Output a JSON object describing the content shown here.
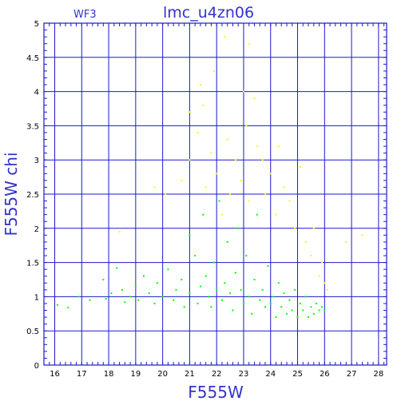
{
  "chart_data": {
    "type": "scatter",
    "title": "lmc_u4zn06",
    "subtitle": "WF3",
    "xlabel": "F555W",
    "ylabel": "F555W  chi",
    "xlim": [
      15.6,
      28.3
    ],
    "ylim": [
      0,
      5
    ],
    "xticks": [
      16,
      17,
      18,
      19,
      20,
      21,
      22,
      23,
      24,
      25,
      26,
      27,
      28
    ],
    "yticks": [
      0,
      0.5,
      1,
      1.5,
      2,
      2.5,
      3,
      3.5,
      4,
      4.5,
      5
    ],
    "xtick_labels": [
      "16",
      "17",
      "18",
      "19",
      "20",
      "21",
      "22",
      "23",
      "24",
      "25",
      "26",
      "27",
      "28"
    ],
    "ytick_labels": [
      "0",
      "0.5",
      "1",
      "1.5",
      "2",
      "2.5",
      "3",
      "3.5",
      "4",
      "4.5",
      "5"
    ],
    "grid": true,
    "series": [
      {
        "color": "#00ff00",
        "points": [
          [
            16.1,
            0.88
          ],
          [
            16.5,
            0.84
          ],
          [
            16.9,
            1.0
          ],
          [
            17.3,
            0.95
          ],
          [
            17.8,
            1.25
          ],
          [
            17.9,
            0.97
          ],
          [
            18.1,
            1.05
          ],
          [
            18.3,
            1.42
          ],
          [
            18.5,
            1.1
          ],
          [
            18.6,
            0.92
          ],
          [
            18.8,
            1.0
          ],
          [
            19.0,
            1.15
          ],
          [
            19.1,
            0.95
          ],
          [
            19.3,
            1.3
          ],
          [
            19.5,
            1.05
          ],
          [
            19.7,
            0.9
          ],
          [
            19.8,
            1.2
          ],
          [
            20.0,
            1.0
          ],
          [
            20.2,
            1.4
          ],
          [
            20.4,
            0.95
          ],
          [
            20.5,
            1.1
          ],
          [
            20.7,
            1.25
          ],
          [
            20.8,
            0.85
          ],
          [
            21.0,
            1.05
          ],
          [
            21.0,
            1.9
          ],
          [
            21.2,
            1.6
          ],
          [
            21.3,
            0.9
          ],
          [
            21.4,
            1.15
          ],
          [
            21.5,
            2.2
          ],
          [
            21.6,
            1.3
          ],
          [
            21.7,
            1.0
          ],
          [
            21.8,
            0.85
          ],
          [
            21.9,
            1.5
          ],
          [
            22.0,
            1.1
          ],
          [
            22.1,
            2.4
          ],
          [
            22.2,
            0.95
          ],
          [
            22.3,
            1.2
          ],
          [
            22.4,
            1.8
          ],
          [
            22.5,
            1.05
          ],
          [
            22.6,
            0.8
          ],
          [
            22.7,
            1.35
          ],
          [
            22.8,
            2.0
          ],
          [
            22.9,
            1.1
          ],
          [
            23.0,
            0.9
          ],
          [
            23.1,
            1.6
          ],
          [
            23.2,
            1.0
          ],
          [
            23.3,
            0.75
          ],
          [
            23.4,
            1.25
          ],
          [
            23.5,
            2.2
          ],
          [
            23.6,
            0.95
          ],
          [
            23.7,
            1.1
          ],
          [
            23.8,
            0.85
          ],
          [
            23.9,
            1.45
          ],
          [
            24.0,
            0.9
          ],
          [
            24.1,
            1.0
          ],
          [
            24.2,
            0.7
          ],
          [
            24.3,
            1.2
          ],
          [
            24.4,
            0.85
          ],
          [
            24.5,
            1.05
          ],
          [
            24.6,
            0.75
          ],
          [
            24.7,
            0.95
          ],
          [
            24.8,
            0.8
          ],
          [
            24.9,
            1.1
          ],
          [
            25.0,
            0.7
          ],
          [
            25.1,
            0.9
          ],
          [
            25.2,
            0.8
          ],
          [
            25.3,
            1.0
          ],
          [
            25.4,
            0.7
          ],
          [
            25.5,
            0.85
          ],
          [
            25.6,
            0.75
          ],
          [
            25.7,
            0.9
          ],
          [
            25.8,
            0.8
          ],
          [
            25.9,
            0.85
          ],
          [
            26.0,
            0.8
          ]
        ]
      },
      {
        "color": "#ffff00",
        "points": [
          [
            18.4,
            1.95
          ],
          [
            19.7,
            2.6
          ],
          [
            20.1,
            2.5
          ],
          [
            20.7,
            2.7
          ],
          [
            21.0,
            3.0
          ],
          [
            21.0,
            3.7
          ],
          [
            21.3,
            3.4
          ],
          [
            21.4,
            4.1
          ],
          [
            21.6,
            2.6
          ],
          [
            21.8,
            3.1
          ],
          [
            21.9,
            4.3
          ],
          [
            22.0,
            2.8
          ],
          [
            22.2,
            2.2
          ],
          [
            22.4,
            3.3
          ],
          [
            22.5,
            2.5
          ],
          [
            22.7,
            3.0
          ],
          [
            22.9,
            2.7
          ],
          [
            23.0,
            4.0
          ],
          [
            23.1,
            3.5
          ],
          [
            23.2,
            2.4
          ],
          [
            23.4,
            3.9
          ],
          [
            23.5,
            3.2
          ],
          [
            23.7,
            3.0
          ],
          [
            23.8,
            2.5
          ],
          [
            24.0,
            2.8
          ],
          [
            24.2,
            2.2
          ],
          [
            24.3,
            3.2
          ],
          [
            24.5,
            2.6
          ],
          [
            24.7,
            2.4
          ],
          [
            24.9,
            2.0
          ],
          [
            25.1,
            2.9
          ],
          [
            25.3,
            1.8
          ],
          [
            25.5,
            1.6
          ],
          [
            25.6,
            2.0
          ],
          [
            25.8,
            1.3
          ],
          [
            25.9,
            1.5
          ],
          [
            26.0,
            1.2
          ],
          [
            26.1,
            1.1
          ],
          [
            26.8,
            1.8
          ],
          [
            27.4,
            1.9
          ],
          [
            23.2,
            4.7
          ],
          [
            22.3,
            4.8
          ],
          [
            21.5,
            3.8
          ]
        ]
      }
    ]
  }
}
